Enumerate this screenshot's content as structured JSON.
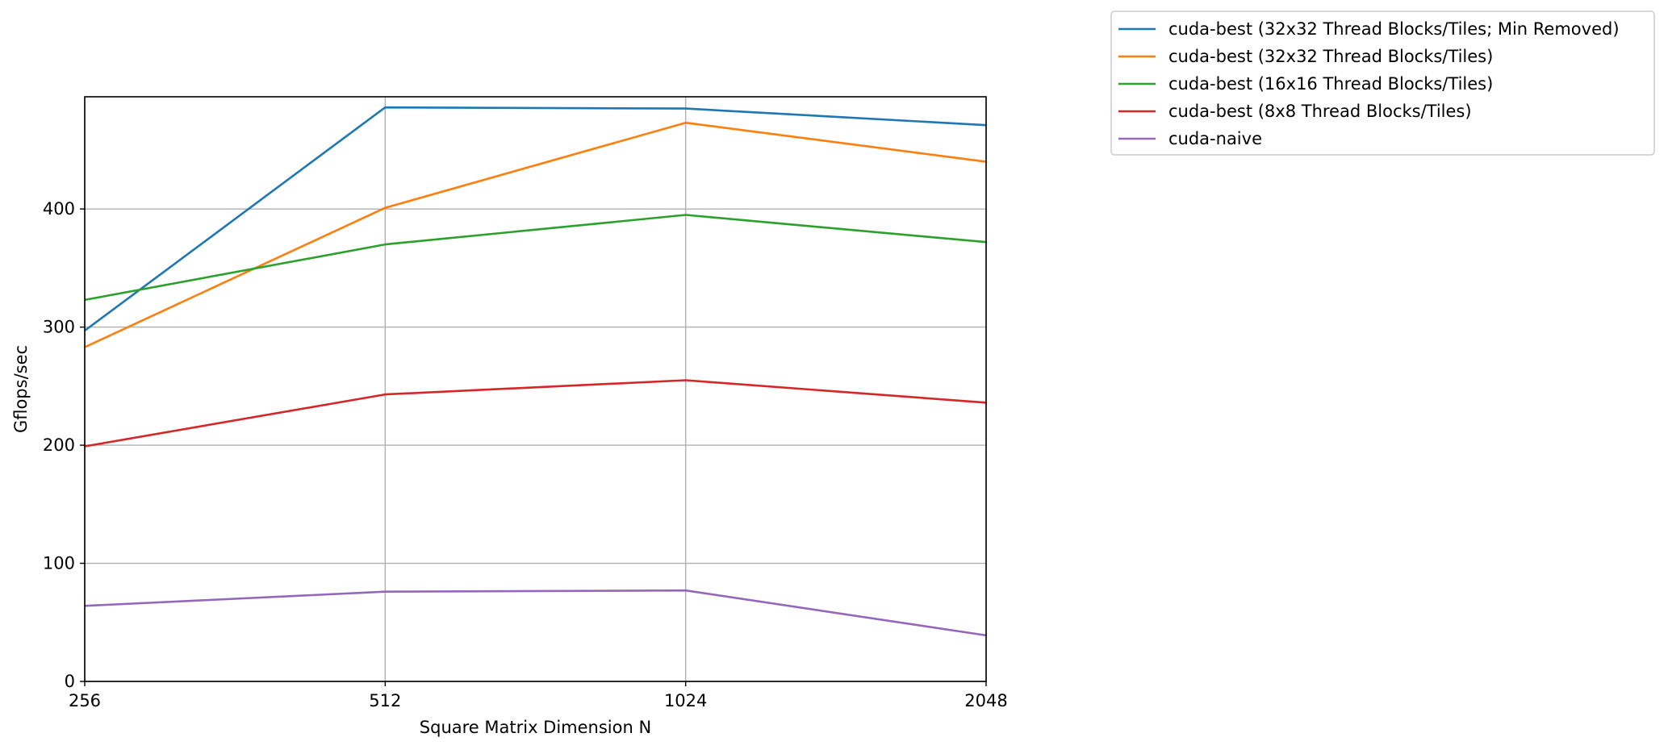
{
  "chart_data": {
    "type": "line",
    "xlabel": "Square Matrix Dimension N",
    "ylabel": "Gflops/sec",
    "x": [
      256,
      512,
      1024,
      2048
    ],
    "x_tick_labels": [
      "256",
      "512",
      "1024",
      "2048"
    ],
    "x_scale": "log2",
    "ylim": [
      0,
      495
    ],
    "y_ticks": [
      0,
      100,
      200,
      300,
      400
    ],
    "y_tick_labels": [
      "0",
      "100",
      "200",
      "300",
      "400"
    ],
    "grid": true,
    "legend_position": "outside top-right",
    "series": [
      {
        "name": "cuda-best (32x32 Thread Blocks/Tiles; Min Removed)",
        "color": "#1f77b4",
        "values": [
          297,
          486,
          485,
          471
        ]
      },
      {
        "name": "cuda-best (32x32 Thread Blocks/Tiles)",
        "color": "#ff7f0e",
        "values": [
          283,
          401,
          473,
          440
        ]
      },
      {
        "name": "cuda-best (16x16 Thread Blocks/Tiles)",
        "color": "#2ca02c",
        "values": [
          323,
          370,
          395,
          372
        ]
      },
      {
        "name": "cuda-best (8x8 Thread Blocks/Tiles)",
        "color": "#d62728",
        "values": [
          199,
          243,
          255,
          236
        ]
      },
      {
        "name": "cuda-naive",
        "color": "#9467bd",
        "values": [
          64,
          76,
          77,
          39
        ]
      }
    ]
  }
}
